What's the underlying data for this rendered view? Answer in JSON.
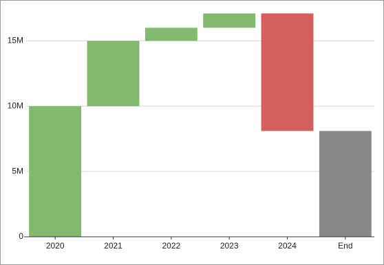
{
  "chart_data": {
    "type": "waterfall",
    "categories": [
      "2020",
      "2021",
      "2022",
      "2023",
      "2024",
      "End"
    ],
    "values": [
      10000000,
      5000000,
      1000000,
      1100000,
      -9000000,
      8100000
    ],
    "totals": [
      "End"
    ],
    "colors": {
      "increase": "#82b96e",
      "decrease": "#d35f5f",
      "total": "#888888"
    },
    "ylim": [
      0,
      17600000
    ],
    "yticks": [
      0,
      {
        "value": 5000000,
        "label": "5M"
      },
      {
        "value": 10000000,
        "label": "10M"
      },
      {
        "value": 15000000,
        "label": "15M"
      }
    ],
    "grid": true
  }
}
